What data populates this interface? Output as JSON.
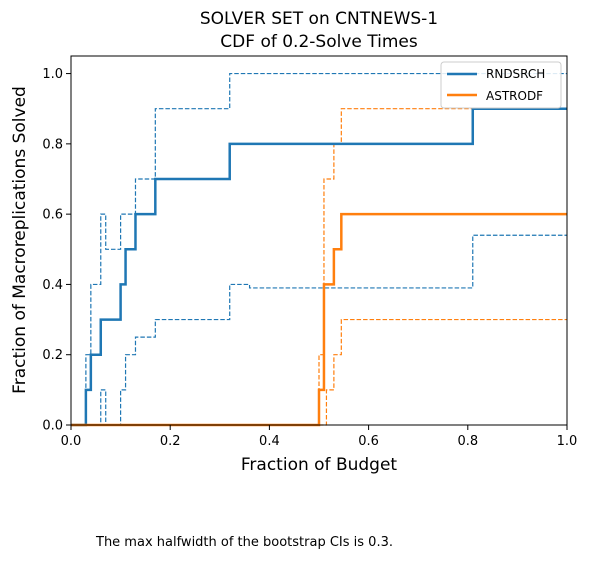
{
  "footnote": "The max halfwidth of the bootstrap CIs is 0.3.",
  "chart_data": {
    "type": "line",
    "step": "post",
    "title": [
      "SOLVER SET on CNTNEWS-1",
      "CDF of 0.2-Solve Times"
    ],
    "xlabel": "Fraction of Budget",
    "ylabel": "Fraction of Macroreplications Solved",
    "xlim": [
      0,
      1
    ],
    "ylim": [
      0,
      1.05
    ],
    "xticks": [
      "0.0",
      "0.2",
      "0.4",
      "0.6",
      "0.8",
      "1.0"
    ],
    "yticks": [
      "0.0",
      "0.2",
      "0.4",
      "0.6",
      "0.8",
      "1.0"
    ],
    "grid": false,
    "legend": "top-right",
    "series": [
      {
        "name": "RNDSRCH",
        "color": "#1f77b4",
        "role": "estimate",
        "points": [
          [
            0,
            0
          ],
          [
            0.03,
            0
          ],
          [
            0.03,
            0.1
          ],
          [
            0.04,
            0.1
          ],
          [
            0.04,
            0.2
          ],
          [
            0.06,
            0.2
          ],
          [
            0.06,
            0.3
          ],
          [
            0.1,
            0.3
          ],
          [
            0.1,
            0.4
          ],
          [
            0.11,
            0.4
          ],
          [
            0.11,
            0.5
          ],
          [
            0.13,
            0.5
          ],
          [
            0.13,
            0.6
          ],
          [
            0.17,
            0.6
          ],
          [
            0.17,
            0.7
          ],
          [
            0.32,
            0.7
          ],
          [
            0.32,
            0.8
          ],
          [
            0.81,
            0.8
          ],
          [
            0.81,
            0.9
          ],
          [
            1.0,
            0.9
          ]
        ]
      },
      {
        "name": "",
        "color": "#1f77b4",
        "role": "ci-upper",
        "points": [
          [
            0,
            0
          ],
          [
            0.03,
            0
          ],
          [
            0.03,
            0.2
          ],
          [
            0.04,
            0.2
          ],
          [
            0.04,
            0.4
          ],
          [
            0.06,
            0.4
          ],
          [
            0.06,
            0.6
          ],
          [
            0.07,
            0.6
          ],
          [
            0.07,
            0.5
          ],
          [
            0.1,
            0.5
          ],
          [
            0.1,
            0.6
          ],
          [
            0.13,
            0.6
          ],
          [
            0.13,
            0.7
          ],
          [
            0.17,
            0.7
          ],
          [
            0.17,
            0.9
          ],
          [
            0.32,
            0.9
          ],
          [
            0.32,
            1.0
          ],
          [
            1.0,
            1.0
          ]
        ]
      },
      {
        "name": "",
        "color": "#1f77b4",
        "role": "ci-lower",
        "points": [
          [
            0,
            0
          ],
          [
            0.06,
            0
          ],
          [
            0.06,
            0.1
          ],
          [
            0.07,
            0.1
          ],
          [
            0.07,
            0
          ],
          [
            0.1,
            0
          ],
          [
            0.1,
            0.1
          ],
          [
            0.11,
            0.1
          ],
          [
            0.11,
            0.2
          ],
          [
            0.13,
            0.2
          ],
          [
            0.13,
            0.25
          ],
          [
            0.17,
            0.25
          ],
          [
            0.17,
            0.3
          ],
          [
            0.32,
            0.3
          ],
          [
            0.32,
            0.4
          ],
          [
            0.36,
            0.4
          ],
          [
            0.36,
            0.39
          ],
          [
            0.81,
            0.39
          ],
          [
            0.81,
            0.54
          ],
          [
            1.0,
            0.54
          ]
        ]
      },
      {
        "name": "ASTRODF",
        "color": "#ff7f0e",
        "role": "estimate",
        "points": [
          [
            0,
            0
          ],
          [
            0.5,
            0
          ],
          [
            0.5,
            0.1
          ],
          [
            0.51,
            0.1
          ],
          [
            0.51,
            0.4
          ],
          [
            0.53,
            0.4
          ],
          [
            0.53,
            0.5
          ],
          [
            0.545,
            0.5
          ],
          [
            0.545,
            0.6
          ],
          [
            1.0,
            0.6
          ]
        ]
      },
      {
        "name": "",
        "color": "#ff7f0e",
        "role": "ci-upper",
        "points": [
          [
            0.5,
            0
          ],
          [
            0.5,
            0.2
          ],
          [
            0.51,
            0.2
          ],
          [
            0.51,
            0.7
          ],
          [
            0.53,
            0.7
          ],
          [
            0.53,
            0.8
          ],
          [
            0.545,
            0.8
          ],
          [
            0.545,
            0.9
          ],
          [
            1.0,
            0.9
          ]
        ]
      },
      {
        "name": "",
        "color": "#ff7f0e",
        "role": "ci-lower",
        "points": [
          [
            0.5,
            0
          ],
          [
            0.515,
            0
          ],
          [
            0.515,
            0.1
          ],
          [
            0.53,
            0.1
          ],
          [
            0.53,
            0.2
          ],
          [
            0.545,
            0.2
          ],
          [
            0.545,
            0.3
          ],
          [
            1.0,
            0.3
          ]
        ]
      }
    ]
  }
}
